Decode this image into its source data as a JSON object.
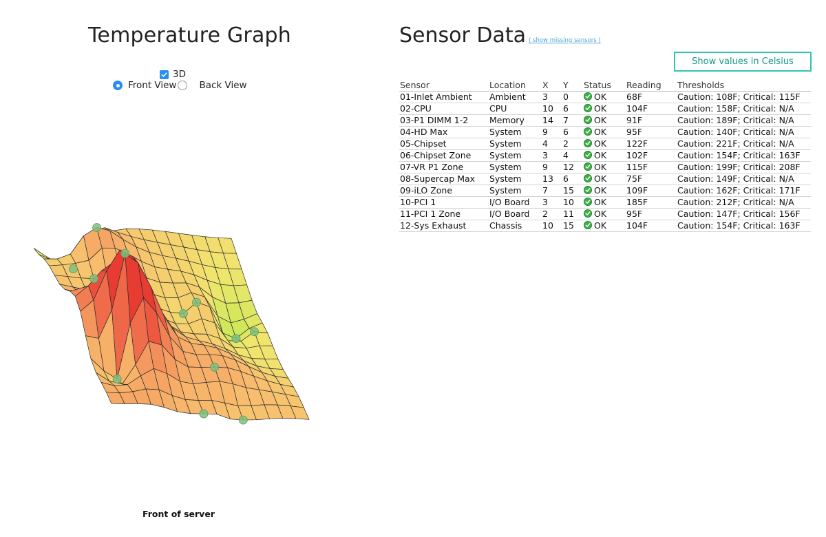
{
  "left": {
    "title": "Temperature Graph",
    "checkbox_3d_label": "3D",
    "checkbox_3d_checked": true,
    "front_view_label": "Front View",
    "back_view_label": "Back View",
    "selected_view": "front",
    "caption": "Front of server"
  },
  "right": {
    "title": "Sensor Data",
    "missing_link": "( show missing sensors )",
    "celsius_button": "Show values in Celsius",
    "columns": [
      "Sensor",
      "Location",
      "X",
      "Y",
      "Status",
      "Reading",
      "Thresholds"
    ],
    "rows": [
      {
        "sensor": "01-Inlet Ambient",
        "location": "Ambient",
        "x": "3",
        "y": "0",
        "status": "OK",
        "reading": "68F",
        "thresholds": "Caution: 108F; Critical: 115F"
      },
      {
        "sensor": "02-CPU",
        "location": "CPU",
        "x": "10",
        "y": "6",
        "status": "OK",
        "reading": "104F",
        "thresholds": "Caution: 158F; Critical: N/A"
      },
      {
        "sensor": "03-P1 DIMM 1-2",
        "location": "Memory",
        "x": "14",
        "y": "7",
        "status": "OK",
        "reading": "91F",
        "thresholds": "Caution: 189F; Critical: N/A"
      },
      {
        "sensor": "04-HD Max",
        "location": "System",
        "x": "9",
        "y": "6",
        "status": "OK",
        "reading": "95F",
        "thresholds": "Caution: 140F; Critical: N/A"
      },
      {
        "sensor": "05-Chipset",
        "location": "System",
        "x": "4",
        "y": "2",
        "status": "OK",
        "reading": "122F",
        "thresholds": "Caution: 221F; Critical: N/A"
      },
      {
        "sensor": "06-Chipset Zone",
        "location": "System",
        "x": "3",
        "y": "4",
        "status": "OK",
        "reading": "102F",
        "thresholds": "Caution: 154F; Critical: 163F"
      },
      {
        "sensor": "07-VR P1 Zone",
        "location": "System",
        "x": "9",
        "y": "12",
        "status": "OK",
        "reading": "115F",
        "thresholds": "Caution: 199F; Critical: 208F"
      },
      {
        "sensor": "08-Supercap Max",
        "location": "System",
        "x": "13",
        "y": "6",
        "status": "OK",
        "reading": "75F",
        "thresholds": "Caution: 149F; Critical: N/A"
      },
      {
        "sensor": "09-iLO Zone",
        "location": "System",
        "x": "7",
        "y": "15",
        "status": "OK",
        "reading": "109F",
        "thresholds": "Caution: 162F; Critical: 171F"
      },
      {
        "sensor": "10-PCI 1",
        "location": "I/O Board",
        "x": "3",
        "y": "10",
        "status": "OK",
        "reading": "185F",
        "thresholds": "Caution: 212F; Critical: N/A"
      },
      {
        "sensor": "11-PCI 1 Zone",
        "location": "I/O Board",
        "x": "2",
        "y": "11",
        "status": "OK",
        "reading": "95F",
        "thresholds": "Caution: 147F; Critical: 156F"
      },
      {
        "sensor": "12-Sys Exhaust",
        "location": "Chassis",
        "x": "10",
        "y": "15",
        "status": "OK",
        "reading": "104F",
        "thresholds": "Caution: 154F; Critical: 163F"
      }
    ]
  },
  "colors": {
    "accent_blue": "#2a8df0",
    "button_teal": "#32c3b3",
    "ok_green": "#3fae49",
    "link_blue": "#4aa6d6"
  },
  "icons": {
    "checkbox": "check-icon",
    "status_ok": "ok-check-icon"
  }
}
